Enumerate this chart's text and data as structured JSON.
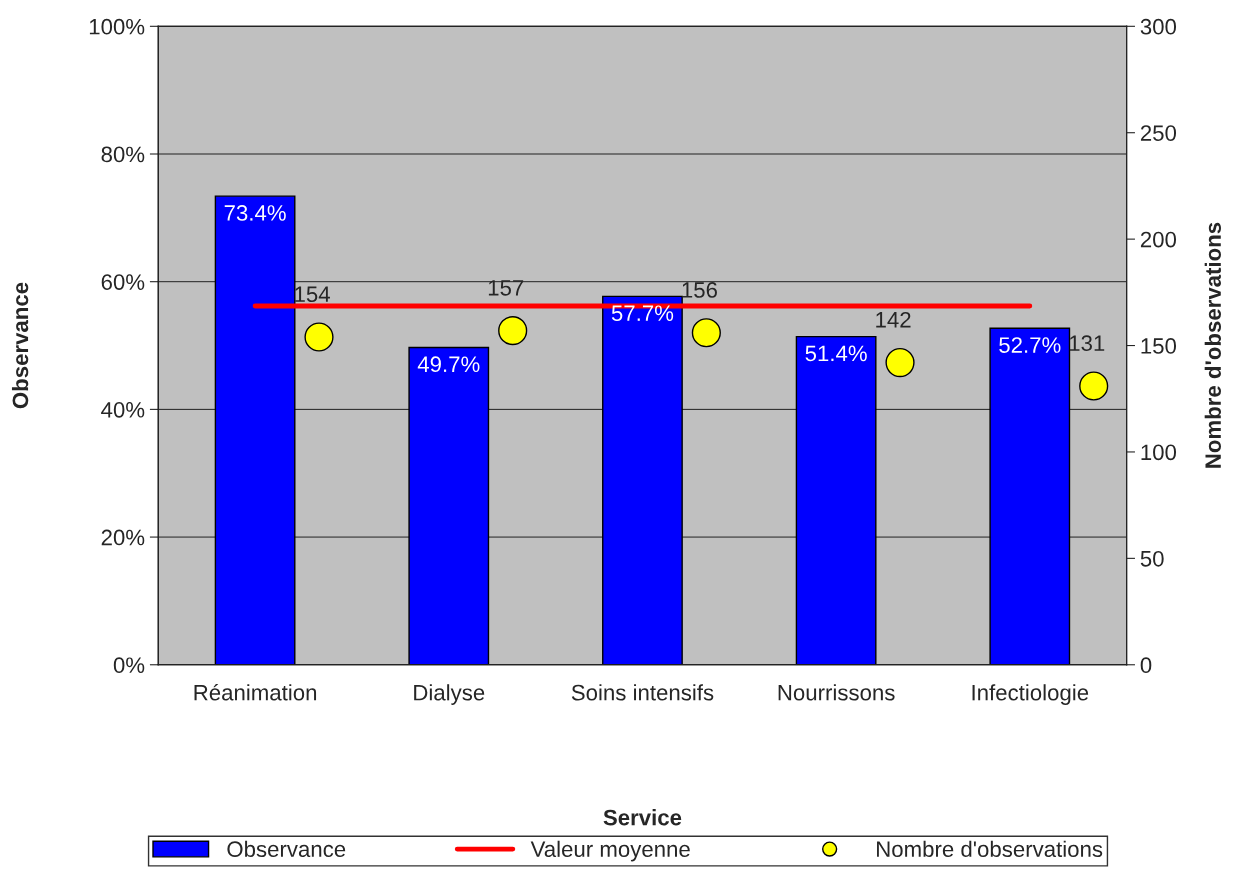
{
  "chart_data": {
    "type": "bar",
    "xlabel": "Service",
    "ylabel": "Observance",
    "y2label": "Nombre d'observations",
    "categories": [
      "Réanimation",
      "Dialyse",
      "Soins intensifs",
      "Nourrissons",
      "Infectiologie"
    ],
    "series": [
      {
        "name": "Observance",
        "type": "bar",
        "color": "#0000ff",
        "values": [
          73.4,
          49.7,
          57.7,
          51.4,
          52.7
        ],
        "value_labels": [
          "73.4%",
          "49.7%",
          "57.7%",
          "51.4%",
          "52.7%"
        ]
      },
      {
        "name": "Valeur moyenne",
        "type": "line",
        "color": "#ff0000",
        "values": [
          56.2,
          56.2,
          56.2,
          56.2,
          56.2
        ]
      },
      {
        "name": "Nombre d'observations",
        "type": "scatter",
        "axis": "y2",
        "color": "#ffff00",
        "marker": "circle",
        "values": [
          154,
          157,
          156,
          142,
          131
        ],
        "value_labels": [
          "154",
          "157",
          "156",
          "142",
          "131"
        ]
      }
    ],
    "ylim": [
      0,
      100
    ],
    "yticks": [
      {
        "value": 0,
        "label": "0%"
      },
      {
        "value": 20,
        "label": "20%"
      },
      {
        "value": 40,
        "label": "40%"
      },
      {
        "value": 60,
        "label": "60%"
      },
      {
        "value": 80,
        "label": "80%"
      },
      {
        "value": 100,
        "label": "100%"
      }
    ],
    "y2lim": [
      0,
      300
    ],
    "y2ticks": [
      0,
      50,
      100,
      150,
      200,
      250,
      300
    ],
    "grid": "y",
    "legend": "bottom"
  }
}
